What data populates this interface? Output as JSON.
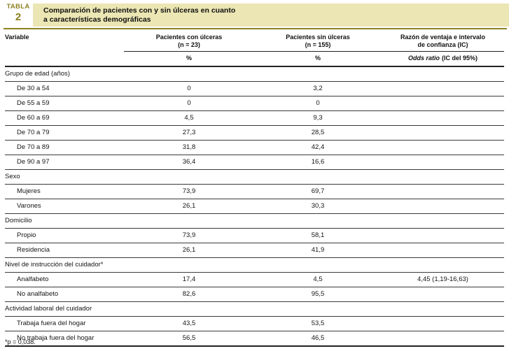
{
  "header": {
    "kicker": "TABLA",
    "number": "2",
    "title_line1": "Comparación de pacientes con y sin úlceras en cuanto",
    "title_line2": "a características demográficas"
  },
  "colors": {
    "olive": "#8d8120",
    "title_bar_bg": "#ebe6b3",
    "rule_dark": "#222222"
  },
  "table": {
    "columns": {
      "variable": "Variable",
      "with_ulcers_line1": "Pacientes con úlceras",
      "with_ulcers_line2": "(n = 23)",
      "without_ulcers_line1": "Pacientes sin úlceras",
      "without_ulcers_line2": "(n = 155)",
      "odds_line1": "Razón de ventaja e intervalo",
      "odds_line2": "de confianza (IC)",
      "with_ulcers_sub": "%",
      "without_ulcers_sub": "%",
      "odds_sub_italic": "Odds ratio",
      "odds_sub_rest": "(IC del 95%)"
    },
    "rows": [
      {
        "type": "group",
        "label": "Grupo de edad (años)"
      },
      {
        "type": "data",
        "label": "De 30 a 54",
        "with_ulcers": "0",
        "without_ulcers": "3,2",
        "odds": ""
      },
      {
        "type": "data",
        "label": "De 55 a 59",
        "with_ulcers": "0",
        "without_ulcers": "0",
        "odds": ""
      },
      {
        "type": "data",
        "label": "De 60 a 69",
        "with_ulcers": "4,5",
        "without_ulcers": "9,3",
        "odds": ""
      },
      {
        "type": "data",
        "label": "De 70 a 79",
        "with_ulcers": "27,3",
        "without_ulcers": "28,5",
        "odds": ""
      },
      {
        "type": "data",
        "label": "De 70 a 89",
        "with_ulcers": "31,8",
        "without_ulcers": "42,4",
        "odds": ""
      },
      {
        "type": "data",
        "label": "De 90 a 97",
        "with_ulcers": "36,4",
        "without_ulcers": "16,6",
        "odds": ""
      },
      {
        "type": "group",
        "label": "Sexo"
      },
      {
        "type": "data",
        "label": "Mujeres",
        "with_ulcers": "73,9",
        "without_ulcers": "69,7",
        "odds": ""
      },
      {
        "type": "data",
        "label": "Varones",
        "with_ulcers": "26,1",
        "without_ulcers": "30,3",
        "odds": ""
      },
      {
        "type": "group",
        "label": "Domicilio"
      },
      {
        "type": "data",
        "label": "Propio",
        "with_ulcers": "73,9",
        "without_ulcers": "58,1",
        "odds": ""
      },
      {
        "type": "data",
        "label": "Residencia",
        "with_ulcers": "26,1",
        "without_ulcers": "41,9",
        "odds": ""
      },
      {
        "type": "group",
        "label": "Nivel de instrucción del cuidador*"
      },
      {
        "type": "data",
        "label": "Analfabeto",
        "with_ulcers": "17,4",
        "without_ulcers": "4,5",
        "odds": "4,45 (1,19-16,63)"
      },
      {
        "type": "data",
        "label": "No analfabeto",
        "with_ulcers": "82,6",
        "without_ulcers": "95,5",
        "odds": ""
      },
      {
        "type": "group",
        "label": "Actividad laboral del cuidador"
      },
      {
        "type": "data",
        "label": "Trabaja fuera del hogar",
        "with_ulcers": "43,5",
        "without_ulcers": "53,5",
        "odds": ""
      },
      {
        "type": "data",
        "label": "No trabaja fuera del hogar",
        "with_ulcers": "56,5",
        "without_ulcers": "46,5",
        "odds": ""
      }
    ]
  },
  "footnote": "*p = 0,038."
}
